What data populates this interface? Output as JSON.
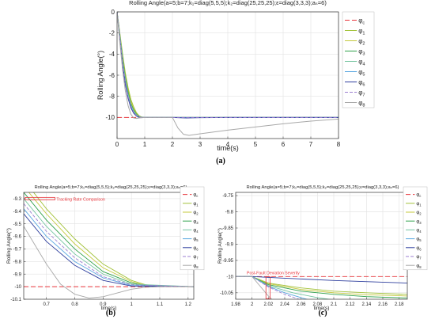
{
  "chart_data": [
    {
      "id": "a",
      "type": "line",
      "title": "Rolling Angle(a=5;b=7;k₁=diag(5,5,5);k₂=diag(25,25,25);ε=diag(3,3,3);aₛ=6)",
      "xlabel": "time(s)",
      "ylabel": "Rolling Angle(°)",
      "xlim": [
        0,
        8
      ],
      "ylim": [
        -12,
        0
      ],
      "xticks": [
        0,
        1,
        2,
        3,
        4,
        5,
        6,
        7,
        8
      ],
      "yticks": [
        0,
        -2,
        -4,
        -6,
        -8,
        -10
      ],
      "grid": true,
      "legend": "right",
      "caption": "(a)",
      "series": [
        {
          "name": "φc",
          "color": "#e8343b",
          "dash": "6,3",
          "points": [
            [
              0,
              -10
            ],
            [
              8,
              -10
            ]
          ]
        },
        {
          "name": "φ1",
          "color": "#a3c23a",
          "points": [
            [
              0,
              0
            ],
            [
              0.1,
              -2.0
            ],
            [
              0.2,
              -4.0
            ],
            [
              0.3,
              -5.8
            ],
            [
              0.4,
              -7.2
            ],
            [
              0.5,
              -8.3
            ],
            [
              0.6,
              -9.0
            ],
            [
              0.7,
              -9.55
            ],
            [
              0.8,
              -9.85
            ],
            [
              0.9,
              -9.97
            ],
            [
              1.0,
              -10.0
            ],
            [
              8,
              -10.0
            ]
          ]
        },
        {
          "name": "φ2",
          "color": "#c4c83e",
          "points": [
            [
              0,
              0
            ],
            [
              0.1,
              -2.1
            ],
            [
              0.2,
              -4.2
            ],
            [
              0.3,
              -6.0
            ],
            [
              0.4,
              -7.4
            ],
            [
              0.5,
              -8.5
            ],
            [
              0.6,
              -9.2
            ],
            [
              0.7,
              -9.65
            ],
            [
              0.8,
              -9.9
            ],
            [
              0.9,
              -9.98
            ],
            [
              1.0,
              -10.0
            ],
            [
              8,
              -10.0
            ]
          ]
        },
        {
          "name": "φ3",
          "color": "#2fa14a",
          "points": [
            [
              0,
              0
            ],
            [
              0.1,
              -2.2
            ],
            [
              0.2,
              -4.4
            ],
            [
              0.3,
              -6.2
            ],
            [
              0.4,
              -7.6
            ],
            [
              0.5,
              -8.7
            ],
            [
              0.6,
              -9.3
            ],
            [
              0.7,
              -9.7
            ],
            [
              0.8,
              -9.92
            ],
            [
              0.9,
              -9.99
            ],
            [
              1.0,
              -10.0
            ],
            [
              8,
              -10.0
            ]
          ]
        },
        {
          "name": "φ4",
          "color": "#74c4a0",
          "points": [
            [
              0,
              0
            ],
            [
              0.1,
              -2.3
            ],
            [
              0.2,
              -4.6
            ],
            [
              0.3,
              -6.4
            ],
            [
              0.4,
              -7.8
            ],
            [
              0.5,
              -8.8
            ],
            [
              0.6,
              -9.4
            ],
            [
              0.7,
              -9.75
            ],
            [
              0.8,
              -9.94
            ],
            [
              0.9,
              -9.99
            ],
            [
              1.0,
              -10.0
            ],
            [
              8,
              -10.0
            ]
          ]
        },
        {
          "name": "φ5",
          "color": "#5aa7e0",
          "points": [
            [
              0,
              0
            ],
            [
              0.1,
              -2.5
            ],
            [
              0.2,
              -4.9
            ],
            [
              0.3,
              -6.8
            ],
            [
              0.4,
              -8.1
            ],
            [
              0.5,
              -9.0
            ],
            [
              0.6,
              -9.55
            ],
            [
              0.7,
              -9.85
            ],
            [
              0.8,
              -9.97
            ],
            [
              0.9,
              -10.0
            ],
            [
              8,
              -10.0
            ]
          ]
        },
        {
          "name": "φ6",
          "color": "#2f3f9e",
          "points": [
            [
              0,
              0
            ],
            [
              0.1,
              -2.6
            ],
            [
              0.2,
              -5.0
            ],
            [
              0.3,
              -6.9
            ],
            [
              0.4,
              -8.2
            ],
            [
              0.5,
              -9.1
            ],
            [
              0.6,
              -9.6
            ],
            [
              0.7,
              -9.88
            ],
            [
              0.8,
              -9.98
            ],
            [
              0.9,
              -10.0
            ],
            [
              2.0,
              -10.0
            ],
            [
              2.5,
              -10.05
            ],
            [
              3.0,
              -10.02
            ],
            [
              4.0,
              -10.0
            ],
            [
              8,
              -10.0
            ]
          ]
        },
        {
          "name": "φ7",
          "color": "#9c7fd0",
          "dash": "4,2",
          "points": [
            [
              0,
              0
            ],
            [
              0.1,
              -2.4
            ],
            [
              0.2,
              -4.8
            ],
            [
              0.3,
              -6.6
            ],
            [
              0.4,
              -8.0
            ],
            [
              0.5,
              -8.9
            ],
            [
              0.6,
              -9.5
            ],
            [
              0.7,
              -9.82
            ],
            [
              0.8,
              -9.96
            ],
            [
              0.9,
              -10.0
            ],
            [
              8,
              -10.0
            ]
          ]
        },
        {
          "name": "φ8",
          "color": "#a8a8a8",
          "points": [
            [
              0,
              0
            ],
            [
              0.1,
              -2.9
            ],
            [
              0.2,
              -5.5
            ],
            [
              0.3,
              -7.5
            ],
            [
              0.4,
              -8.9
            ],
            [
              0.5,
              -9.7
            ],
            [
              0.6,
              -10.05
            ],
            [
              0.7,
              -10.1
            ],
            [
              0.8,
              -10.05
            ],
            [
              1.0,
              -10.0
            ],
            [
              2.0,
              -10.0
            ],
            [
              2.2,
              -11.0
            ],
            [
              2.4,
              -11.6
            ],
            [
              2.6,
              -11.7
            ],
            [
              3.0,
              -11.55
            ],
            [
              4.0,
              -11.2
            ],
            [
              5.0,
              -10.9
            ],
            [
              6.0,
              -10.6
            ],
            [
              7.0,
              -10.35
            ],
            [
              8.0,
              -10.15
            ]
          ]
        }
      ]
    },
    {
      "id": "b",
      "type": "line",
      "title": "Rolling Angle(a=5;b=7;k₁=diag(5,5,5);k₂=diag(25,25,25);ε=diag(3,3,3);aₛ=6)",
      "xlabel": "time(s)",
      "ylabel": "Rolling Angle(°)",
      "xlim": [
        0.62,
        1.22
      ],
      "ylim": [
        -10.1,
        -9.25
      ],
      "xticks": [
        0.7,
        0.8,
        0.9,
        1,
        1.1,
        1.2
      ],
      "yticks": [
        -9.3,
        -9.4,
        -9.5,
        -9.6,
        -9.7,
        -9.8,
        -9.9,
        -10,
        -10.1
      ],
      "grid": true,
      "legend": "right",
      "annotation": "Tracking Rate Comparison",
      "caption": "(b)",
      "series": [
        {
          "name": "φc",
          "color": "#e8343b",
          "dash": "6,3",
          "points": [
            [
              0.62,
              -10
            ],
            [
              1.22,
              -10
            ]
          ]
        },
        {
          "name": "φ1",
          "color": "#a3c23a",
          "points": [
            [
              0.62,
              -9.15
            ],
            [
              0.7,
              -9.38
            ],
            [
              0.8,
              -9.62
            ],
            [
              0.9,
              -9.82
            ],
            [
              1.0,
              -9.95
            ],
            [
              1.05,
              -9.985
            ],
            [
              1.1,
              -9.995
            ],
            [
              1.22,
              -10.0
            ]
          ]
        },
        {
          "name": "φ2",
          "color": "#c4c83e",
          "points": [
            [
              0.62,
              -9.2
            ],
            [
              0.7,
              -9.42
            ],
            [
              0.8,
              -9.66
            ],
            [
              0.9,
              -9.85
            ],
            [
              1.0,
              -9.96
            ],
            [
              1.05,
              -9.99
            ],
            [
              1.22,
              -10.0
            ]
          ]
        },
        {
          "name": "φ3",
          "color": "#2fa14a",
          "points": [
            [
              0.62,
              -9.25
            ],
            [
              0.7,
              -9.47
            ],
            [
              0.8,
              -9.7
            ],
            [
              0.9,
              -9.88
            ],
            [
              1.0,
              -9.97
            ],
            [
              1.05,
              -9.992
            ],
            [
              1.22,
              -10.0
            ]
          ]
        },
        {
          "name": "φ4",
          "color": "#74c4a0",
          "points": [
            [
              0.62,
              -9.3
            ],
            [
              0.7,
              -9.52
            ],
            [
              0.8,
              -9.74
            ],
            [
              0.9,
              -9.9
            ],
            [
              1.0,
              -9.98
            ],
            [
              1.22,
              -10.0
            ]
          ]
        },
        {
          "name": "φ5",
          "color": "#5aa7e0",
          "points": [
            [
              0.62,
              -9.38
            ],
            [
              0.7,
              -9.6
            ],
            [
              0.8,
              -9.8
            ],
            [
              0.9,
              -9.93
            ],
            [
              1.0,
              -9.99
            ],
            [
              1.22,
              -10.0
            ]
          ]
        },
        {
          "name": "φ6",
          "color": "#2f3f9e",
          "points": [
            [
              0.62,
              -9.42
            ],
            [
              0.7,
              -9.64
            ],
            [
              0.8,
              -9.83
            ],
            [
              0.9,
              -9.95
            ],
            [
              1.0,
              -9.995
            ],
            [
              1.22,
              -10.0
            ]
          ]
        },
        {
          "name": "φ7",
          "color": "#9c7fd0",
          "dash": "4,2",
          "points": [
            [
              0.62,
              -9.34
            ],
            [
              0.7,
              -9.56
            ],
            [
              0.8,
              -9.77
            ],
            [
              0.9,
              -9.92
            ],
            [
              1.0,
              -9.985
            ],
            [
              1.22,
              -10.0
            ]
          ]
        },
        {
          "name": "φ8",
          "color": "#a8a8a8",
          "points": [
            [
              0.62,
              -9.52
            ],
            [
              0.7,
              -9.82
            ],
            [
              0.75,
              -9.98
            ],
            [
              0.8,
              -10.06
            ],
            [
              0.85,
              -10.09
            ],
            [
              0.9,
              -10.08
            ],
            [
              0.95,
              -10.05
            ],
            [
              1.0,
              -10.02
            ],
            [
              1.05,
              -10.005
            ],
            [
              1.1,
              -10.0
            ],
            [
              1.22,
              -10.0
            ]
          ]
        }
      ]
    },
    {
      "id": "c",
      "type": "line",
      "title": "Rolling Angle(a=5;b=7;k₁=diag(5,5,5);k₂=diag(25,25,25);ε=diag(3,3,3);aₛ=6)",
      "xlabel": "time(s)",
      "ylabel": "Rolling Angle(°)",
      "xlim": [
        1.98,
        2.19
      ],
      "ylim": [
        -10.07,
        -9.74
      ],
      "xticks": [
        1.98,
        2,
        2.02,
        2.04,
        2.06,
        2.08,
        2.1,
        2.12,
        2.14,
        2.16,
        2.18
      ],
      "yticks": [
        -9.75,
        -9.8,
        -9.85,
        -9.9,
        -9.95,
        -10,
        -10.05
      ],
      "grid": true,
      "legend": "right",
      "annotation": "Post-Fault Deviation Severity",
      "caption": "(c)",
      "series": [
        {
          "name": "φc",
          "color": "#e8343b",
          "dash": "6,3",
          "points": [
            [
              1.98,
              -10
            ],
            [
              2.19,
              -10
            ]
          ]
        },
        {
          "name": "φ1",
          "color": "#a3c23a",
          "points": [
            [
              1.98,
              -10
            ],
            [
              2.0,
              -10
            ],
            [
              2.02,
              -10.02
            ],
            [
              2.06,
              -10.035
            ],
            [
              2.1,
              -10.045
            ],
            [
              2.14,
              -10.05
            ],
            [
              2.19,
              -10.055
            ]
          ]
        },
        {
          "name": "φ2",
          "color": "#c4c83e",
          "points": [
            [
              1.98,
              -10
            ],
            [
              2.0,
              -10
            ],
            [
              2.02,
              -10.022
            ],
            [
              2.06,
              -10.04
            ],
            [
              2.1,
              -10.05
            ],
            [
              2.14,
              -10.056
            ],
            [
              2.19,
              -10.06
            ]
          ]
        },
        {
          "name": "φ3",
          "color": "#2fa14a",
          "points": [
            [
              1.98,
              -10
            ],
            [
              2.0,
              -10
            ],
            [
              2.02,
              -10.025
            ],
            [
              2.06,
              -10.045
            ],
            [
              2.1,
              -10.055
            ],
            [
              2.14,
              -10.062
            ],
            [
              2.19,
              -10.066
            ]
          ]
        },
        {
          "name": "φ4",
          "color": "#74c4a0",
          "points": [
            [
              1.98,
              -10
            ],
            [
              2.0,
              -10
            ],
            [
              2.02,
              -10.028
            ],
            [
              2.05,
              -10.05
            ],
            [
              2.08,
              -10.065
            ],
            [
              2.1,
              -10.072
            ]
          ]
        },
        {
          "name": "φ5",
          "color": "#5aa7e0",
          "points": [
            [
              1.98,
              -10
            ],
            [
              2.0,
              -10
            ],
            [
              2.02,
              -10.03
            ],
            [
              2.04,
              -10.05
            ],
            [
              2.06,
              -10.065
            ],
            [
              2.07,
              -10.072
            ]
          ]
        },
        {
          "name": "φ6",
          "color": "#2f3f9e",
          "points": [
            [
              1.98,
              -10
            ],
            [
              2.0,
              -10
            ],
            [
              2.04,
              -10.005
            ],
            [
              2.1,
              -10.012
            ],
            [
              2.19,
              -10.02
            ]
          ]
        },
        {
          "name": "φ7",
          "color": "#9c7fd0",
          "dash": "4,2",
          "points": [
            [
              1.98,
              -10
            ],
            [
              2.0,
              -10
            ],
            [
              2.02,
              -10.032
            ],
            [
              2.04,
              -10.055
            ],
            [
              2.06,
              -10.072
            ]
          ]
        },
        {
          "name": "φ8",
          "color": "#a8a8a8",
          "points": [
            [
              1.98,
              -10
            ],
            [
              2.0,
              -10
            ],
            [
              2.01,
              -10.03
            ],
            [
              2.02,
              -10.06
            ],
            [
              2.025,
              -10.072
            ]
          ]
        }
      ]
    }
  ]
}
